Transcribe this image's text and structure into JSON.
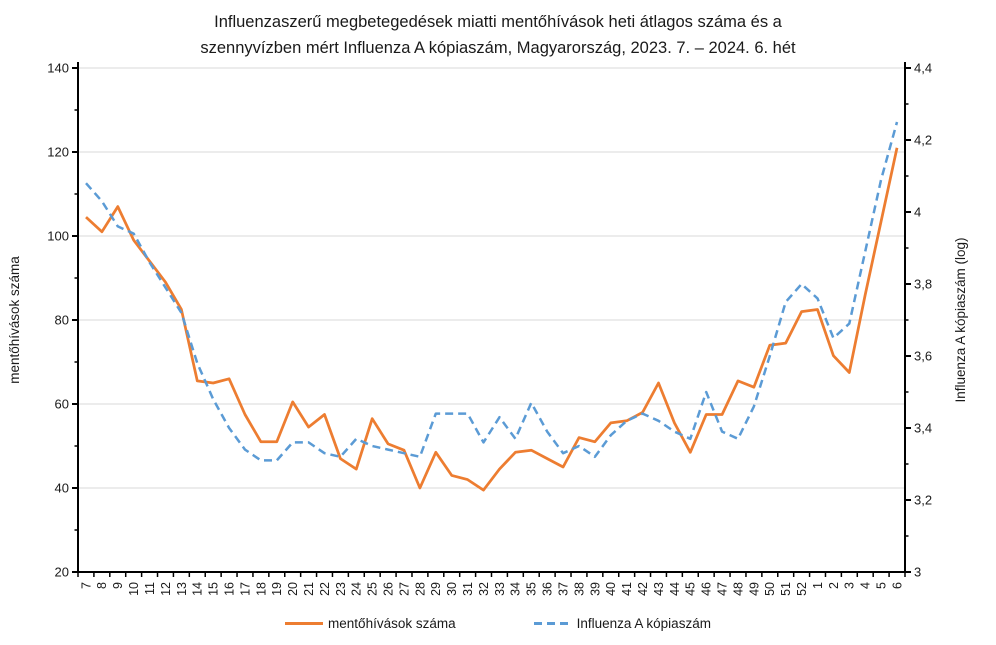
{
  "title": {
    "line1": "Influenzaszerű megbetegedések miatti mentőhívások heti átlagos száma és a",
    "line2": "szennyvízben mért Influenza A kópiaszám, Magyarország, 2023. 7. – 2024. 6. hét"
  },
  "chart_data": {
    "type": "line",
    "x_tick_labels": [
      "7",
      "8",
      "9",
      "10",
      "11",
      "12",
      "13",
      "14",
      "15",
      "16",
      "17",
      "18",
      "19",
      "20",
      "21",
      "22",
      "23",
      "24",
      "25",
      "26",
      "27",
      "28",
      "29",
      "30",
      "31",
      "32",
      "33",
      "34",
      "35",
      "36",
      "37",
      "38",
      "39",
      "40",
      "41",
      "42",
      "43",
      "44",
      "45",
      "46",
      "47",
      "48",
      "49",
      "50",
      "51",
      "52",
      "1",
      "2",
      "3",
      "4",
      "5",
      "6"
    ],
    "left_axis": {
      "title": "mentőhívások száma",
      "min": 20,
      "max": 140,
      "major_step": 20,
      "minor_step": 10,
      "tick_labels": [
        "20",
        "40",
        "60",
        "80",
        "100",
        "120",
        "140"
      ]
    },
    "right_axis": {
      "title": "Influenza A kópiaszám (log)",
      "min": 3,
      "max": 4.4,
      "major_step": 0.2,
      "minor_step": 0.1,
      "tick_labels": [
        "3",
        "3,2",
        "3,4",
        "3,6",
        "3,8",
        "4",
        "4,2",
        "4,4"
      ]
    },
    "grid": {
      "horizontal": true,
      "vertical": false,
      "color": "#D9D9D9"
    },
    "axis_color": "#000000",
    "legend_position": "bottom",
    "series": [
      {
        "name": "mentőhívások száma",
        "axis": "left",
        "color": "#ED7D31",
        "style": "solid",
        "values": [
          104.5,
          101,
          107,
          99,
          94,
          89,
          82.5,
          65.5,
          65,
          66,
          57.5,
          51,
          51,
          60.5,
          54.5,
          57.5,
          47,
          44.5,
          56.5,
          50.5,
          49,
          40,
          48.5,
          43,
          42,
          39.5,
          44.5,
          48.5,
          49,
          47,
          45,
          52,
          51,
          55.5,
          56,
          58,
          65,
          55.5,
          48.5,
          57.5,
          57.5,
          65.5,
          64,
          74,
          74.5,
          82,
          82.5,
          71.5,
          67.5,
          86,
          103.5,
          121
        ]
      },
      {
        "name": "Influenza A kópiaszám",
        "axis": "right",
        "color": "#5B9BD5",
        "style": "dashed",
        "values": [
          4.08,
          4.03,
          3.96,
          3.94,
          3.86,
          3.79,
          3.72,
          3.58,
          3.48,
          3.4,
          3.34,
          3.31,
          3.31,
          3.36,
          3.36,
          3.33,
          3.32,
          3.37,
          3.35,
          3.34,
          3.33,
          3.32,
          3.44,
          3.44,
          3.44,
          3.36,
          3.43,
          3.37,
          3.47,
          3.39,
          3.33,
          3.35,
          3.32,
          3.38,
          3.42,
          3.44,
          3.42,
          3.39,
          3.37,
          3.5,
          3.39,
          3.37,
          3.46,
          3.6,
          3.75,
          3.8,
          3.76,
          3.65,
          3.69,
          3.89,
          4.09,
          4.25
        ]
      }
    ],
    "legend": [
      "mentőhívások száma",
      "Influenza A kópiaszám"
    ]
  }
}
